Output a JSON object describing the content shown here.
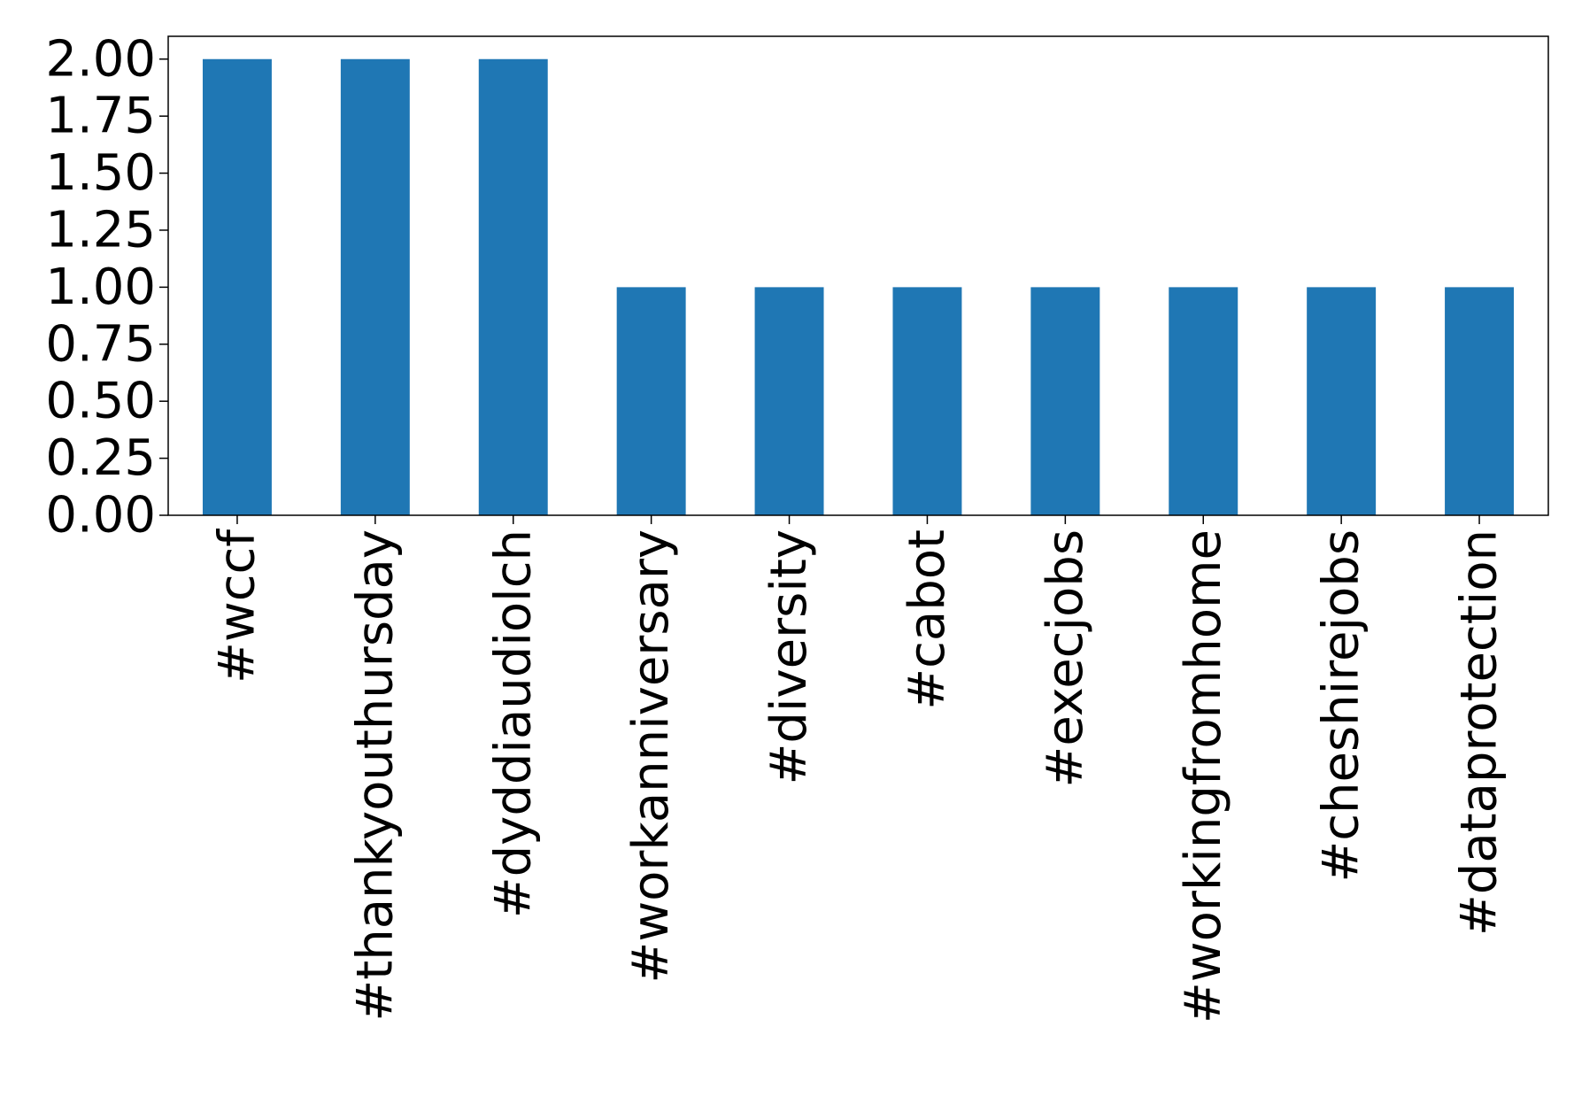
{
  "chart_data": {
    "type": "bar",
    "title": "",
    "xlabel": "",
    "ylabel": "",
    "categories": [
      "#wccf",
      "#thankyouthursday",
      "#dyddiaudiolch",
      "#workanniversary",
      "#diversity",
      "#cabot",
      "#execjobs",
      "#workingfromhome",
      "#cheshirejobs",
      "#dataprotection"
    ],
    "values": [
      2,
      2,
      2,
      1,
      1,
      1,
      1,
      1,
      1,
      1
    ],
    "ylim": [
      0,
      2.1
    ],
    "yticks": [
      "0.00",
      "0.25",
      "0.50",
      "0.75",
      "1.00",
      "1.25",
      "1.50",
      "1.75",
      "2.00"
    ],
    "grid": false,
    "legend": "none",
    "bar_color": "#1f77b4"
  }
}
